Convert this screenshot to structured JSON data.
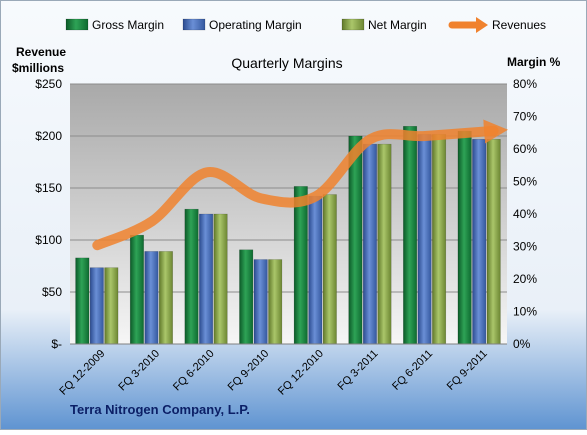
{
  "chart_data": {
    "type": "bar",
    "title": "Quarterly Margins",
    "left_axis_label_line1": "Revenue",
    "left_axis_label_line2": "$millions",
    "right_axis_label": "Margin %",
    "footer": "Terra Nitrogen Company, L.P.",
    "categories": [
      "FQ 12-2009",
      "FQ 3-2010",
      "FQ 6-2010",
      "FQ 9-2010",
      "FQ 12-2010",
      "FQ 3-2011",
      "FQ 6-2011",
      "FQ 9-2011"
    ],
    "left_axis": {
      "min": 0,
      "max": 250,
      "step": 50,
      "tick_labels": [
        "$-",
        "$50",
        "$100",
        "$150",
        "$200",
        "$250"
      ]
    },
    "right_axis": {
      "min": 0,
      "max": 80,
      "step": 10,
      "tick_labels": [
        "0%",
        "10%",
        "20%",
        "30%",
        "40%",
        "50%",
        "60%",
        "70%",
        "80%"
      ]
    },
    "series": [
      {
        "name": "Gross Margin",
        "kind": "bar",
        "axis": "right",
        "color": "#1e8a45",
        "values": [
          26.5,
          33.5,
          41.5,
          29,
          48.5,
          64,
          67,
          65.5
        ]
      },
      {
        "name": "Operating Margin",
        "kind": "bar",
        "axis": "right",
        "color": "#4a6ebd",
        "values": [
          23.5,
          28.5,
          40,
          26,
          45.5,
          61.5,
          64.5,
          63
        ]
      },
      {
        "name": "Net Margin",
        "kind": "bar",
        "axis": "right",
        "color": "#8fab4a",
        "values": [
          23.5,
          28.5,
          40,
          26,
          46,
          61.5,
          64.5,
          63
        ]
      },
      {
        "name": "Revenues",
        "kind": "line",
        "axis": "left",
        "color": "#f0822e",
        "values": [
          95,
          118,
          165,
          140,
          142,
          197,
          200,
          205
        ]
      }
    ],
    "legend_position": "top",
    "grid": true
  }
}
